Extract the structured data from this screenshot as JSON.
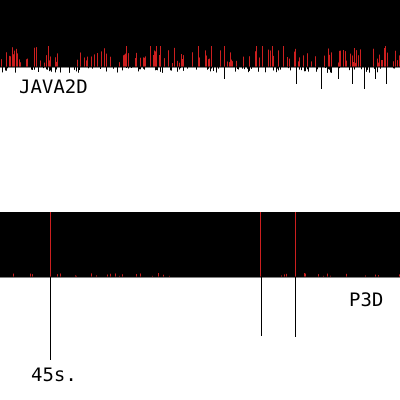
{
  "panels": [
    {
      "label": "JAVA2D"
    },
    {
      "label": "P3D"
    }
  ],
  "time_label": "45s.",
  "colors": {
    "background": "#ffffff",
    "band": "#000000",
    "spike": "#cc1f1f",
    "baseline": "#000000"
  }
}
